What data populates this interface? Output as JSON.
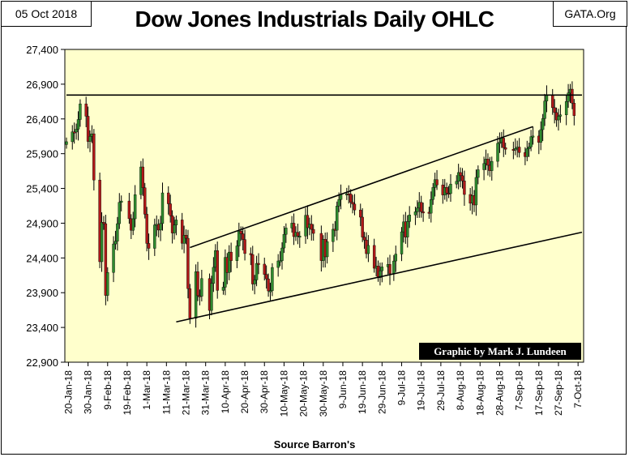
{
  "header": {
    "date": "05 Oct 2018",
    "site": "GATA.Org"
  },
  "chart_data": {
    "type": "ohlc-candlestick",
    "title": "Dow Jones Industrials Daily OHLC",
    "xlabel": "Source Barron's",
    "ylabel": "",
    "ylim": [
      22900,
      27400
    ],
    "yticks": [
      22900,
      23400,
      23900,
      24400,
      24900,
      25400,
      25900,
      26400,
      26900,
      27400
    ],
    "yticklabels": [
      "22,900",
      "23,400",
      "23,900",
      "24,400",
      "24,900",
      "25,400",
      "25,900",
      "26,400",
      "26,900",
      "27,400"
    ],
    "xticklabels": [
      "20-Jan-18",
      "30-Jan-18",
      "9-Feb-18",
      "19-Feb-18",
      "1-Mar-18",
      "11-Mar-18",
      "21-Mar-18",
      "31-Mar-18",
      "10-Apr-18",
      "20-Apr-18",
      "30-Apr-18",
      "10-May-18",
      "20-May-18",
      "30-May-18",
      "9-Jun-18",
      "19-Jun-18",
      "29-Jun-18",
      "9-Jul-18",
      "19-Jul-18",
      "29-Jul-18",
      "8-Aug-18",
      "18-Aug-18",
      "28-Aug-18",
      "7-Sep-18",
      "17-Sep-18",
      "27-Sep-18",
      "7-Oct-18"
    ],
    "grid": false,
    "background": "#ffffcc",
    "annotation": "Graphic by Mark J. Lundeen",
    "series_daily_close": [
      [
        "2018-01-19",
        26072
      ],
      [
        "2018-01-22",
        26214
      ],
      [
        "2018-01-23",
        26211
      ],
      [
        "2018-01-24",
        26252
      ],
      [
        "2018-01-25",
        26392
      ],
      [
        "2018-01-26",
        26617
      ],
      [
        "2018-01-29",
        26439
      ],
      [
        "2018-01-30",
        26076
      ],
      [
        "2018-01-31",
        26149
      ],
      [
        "2018-02-01",
        26186
      ],
      [
        "2018-02-02",
        25521
      ],
      [
        "2018-02-05",
        24346
      ],
      [
        "2018-02-06",
        24913
      ],
      [
        "2018-02-07",
        24893
      ],
      [
        "2018-02-08",
        23861
      ],
      [
        "2018-02-09",
        24191
      ],
      [
        "2018-02-12",
        24601
      ],
      [
        "2018-02-13",
        24641
      ],
      [
        "2018-02-14",
        24893
      ],
      [
        "2018-02-15",
        25200
      ],
      [
        "2018-02-16",
        25219
      ],
      [
        "2018-02-20",
        24965
      ],
      [
        "2018-02-21",
        24798
      ],
      [
        "2018-02-22",
        24963
      ],
      [
        "2018-02-23",
        25310
      ],
      [
        "2018-02-26",
        25709
      ],
      [
        "2018-02-27",
        25410
      ],
      [
        "2018-02-28",
        25029
      ],
      [
        "2018-03-01",
        24609
      ],
      [
        "2018-03-02",
        24538
      ],
      [
        "2018-03-05",
        24875
      ],
      [
        "2018-03-06",
        24884
      ],
      [
        "2018-03-07",
        24801
      ],
      [
        "2018-03-08",
        24895
      ],
      [
        "2018-03-09",
        25336
      ],
      [
        "2018-03-12",
        25179
      ],
      [
        "2018-03-13",
        25007
      ],
      [
        "2018-03-14",
        24759
      ],
      [
        "2018-03-15",
        24874
      ],
      [
        "2018-03-16",
        24947
      ],
      [
        "2018-03-19",
        24611
      ],
      [
        "2018-03-20",
        24727
      ],
      [
        "2018-03-21",
        24683
      ],
      [
        "2018-03-22",
        23958
      ],
      [
        "2018-03-23",
        23533
      ],
      [
        "2018-03-26",
        24202
      ],
      [
        "2018-03-27",
        23857
      ],
      [
        "2018-03-28",
        23849
      ],
      [
        "2018-03-29",
        24103
      ],
      [
        "2018-04-02",
        23645
      ],
      [
        "2018-04-03",
        24034
      ],
      [
        "2018-04-04",
        24265
      ],
      [
        "2018-04-05",
        24505
      ],
      [
        "2018-04-06",
        23933
      ],
      [
        "2018-04-09",
        23979
      ],
      [
        "2018-04-10",
        24408
      ],
      [
        "2018-04-11",
        24190
      ],
      [
        "2018-04-12",
        24484
      ],
      [
        "2018-04-13",
        24360
      ],
      [
        "2018-04-16",
        24573
      ],
      [
        "2018-04-17",
        24787
      ],
      [
        "2018-04-18",
        24748
      ],
      [
        "2018-04-19",
        24665
      ],
      [
        "2018-04-20",
        24463
      ],
      [
        "2018-04-23",
        24449
      ],
      [
        "2018-04-24",
        24025
      ],
      [
        "2018-04-25",
        24084
      ],
      [
        "2018-04-26",
        24322
      ],
      [
        "2018-04-27",
        24311
      ],
      [
        "2018-04-30",
        24163
      ],
      [
        "2018-05-01",
        24099
      ],
      [
        "2018-05-02",
        23925
      ],
      [
        "2018-05-03",
        23930
      ],
      [
        "2018-05-04",
        24263
      ],
      [
        "2018-05-07",
        24357
      ],
      [
        "2018-05-08",
        24361
      ],
      [
        "2018-05-09",
        24543
      ],
      [
        "2018-05-10",
        24740
      ],
      [
        "2018-05-11",
        24831
      ],
      [
        "2018-05-14",
        24900
      ],
      [
        "2018-05-15",
        24707
      ],
      [
        "2018-05-16",
        24769
      ],
      [
        "2018-05-17",
        24714
      ],
      [
        "2018-05-18",
        24715
      ],
      [
        "2018-05-21",
        25013
      ],
      [
        "2018-05-22",
        24835
      ],
      [
        "2018-05-23",
        24887
      ],
      [
        "2018-05-24",
        24811
      ],
      [
        "2018-05-25",
        24753
      ],
      [
        "2018-05-29",
        24362
      ],
      [
        "2018-05-30",
        24668
      ],
      [
        "2018-05-31",
        24416
      ],
      [
        "2018-06-01",
        24635
      ],
      [
        "2018-06-04",
        24813
      ],
      [
        "2018-06-05",
        24799
      ],
      [
        "2018-06-06",
        25146
      ],
      [
        "2018-06-07",
        25241
      ],
      [
        "2018-06-08",
        25317
      ],
      [
        "2018-06-11",
        25322
      ],
      [
        "2018-06-12",
        25320
      ],
      [
        "2018-06-13",
        25201
      ],
      [
        "2018-06-14",
        25175
      ],
      [
        "2018-06-15",
        25090
      ],
      [
        "2018-06-18",
        24987
      ],
      [
        "2018-06-19",
        24700
      ],
      [
        "2018-06-20",
        24657
      ],
      [
        "2018-06-21",
        24462
      ],
      [
        "2018-06-22",
        24580
      ],
      [
        "2018-06-25",
        24252
      ],
      [
        "2018-06-26",
        24283
      ],
      [
        "2018-06-27",
        24117
      ],
      [
        "2018-06-28",
        24216
      ],
      [
        "2018-06-29",
        24271
      ],
      [
        "2018-07-02",
        24307
      ],
      [
        "2018-07-03",
        24174
      ],
      [
        "2018-07-05",
        24356
      ],
      [
        "2018-07-06",
        24456
      ],
      [
        "2018-07-09",
        24776
      ],
      [
        "2018-07-10",
        24919
      ],
      [
        "2018-07-11",
        24700
      ],
      [
        "2018-07-12",
        24924
      ],
      [
        "2018-07-13",
        25019
      ],
      [
        "2018-07-16",
        25064
      ],
      [
        "2018-07-17",
        25119
      ],
      [
        "2018-07-18",
        25199
      ],
      [
        "2018-07-19",
        25064
      ],
      [
        "2018-07-20",
        25058
      ],
      [
        "2018-07-23",
        25044
      ],
      [
        "2018-07-24",
        25241
      ],
      [
        "2018-07-25",
        25414
      ],
      [
        "2018-07-26",
        25527
      ],
      [
        "2018-07-27",
        25451
      ],
      [
        "2018-07-30",
        25306
      ],
      [
        "2018-07-31",
        25415
      ],
      [
        "2018-08-01",
        25333
      ],
      [
        "2018-08-02",
        25326
      ],
      [
        "2018-08-03",
        25463
      ],
      [
        "2018-08-06",
        25502
      ],
      [
        "2018-08-07",
        25629
      ],
      [
        "2018-08-08",
        25583
      ],
      [
        "2018-08-09",
        25509
      ],
      [
        "2018-08-10",
        25313
      ],
      [
        "2018-08-13",
        25187
      ],
      [
        "2018-08-14",
        25299
      ],
      [
        "2018-08-15",
        25162
      ],
      [
        "2018-08-16",
        25558
      ],
      [
        "2018-08-17",
        25669
      ],
      [
        "2018-08-20",
        25758
      ],
      [
        "2018-08-21",
        25822
      ],
      [
        "2018-08-22",
        25733
      ],
      [
        "2018-08-23",
        25656
      ],
      [
        "2018-08-24",
        25790
      ],
      [
        "2018-08-27",
        26049
      ],
      [
        "2018-08-28",
        26064
      ],
      [
        "2018-08-29",
        26124
      ],
      [
        "2018-08-30",
        25986
      ],
      [
        "2018-08-31",
        25964
      ],
      [
        "2018-09-04",
        25952
      ],
      [
        "2018-09-05",
        25974
      ],
      [
        "2018-09-06",
        25995
      ],
      [
        "2018-09-07",
        25916
      ],
      [
        "2018-09-10",
        25857
      ],
      [
        "2018-09-11",
        25971
      ],
      [
        "2018-09-12",
        25998
      ],
      [
        "2018-09-13",
        26145
      ],
      [
        "2018-09-14",
        26154
      ],
      [
        "2018-09-17",
        26062
      ],
      [
        "2018-09-18",
        26246
      ],
      [
        "2018-09-19",
        26405
      ],
      [
        "2018-09-20",
        26657
      ],
      [
        "2018-09-21",
        26743
      ],
      [
        "2018-09-24",
        26562
      ],
      [
        "2018-09-25",
        26492
      ],
      [
        "2018-09-26",
        26385
      ],
      [
        "2018-09-27",
        26439
      ],
      [
        "2018-09-28",
        26458
      ],
      [
        "2018-10-01",
        26651
      ],
      [
        "2018-10-02",
        26773
      ],
      [
        "2018-10-03",
        26828
      ],
      [
        "2018-10-04",
        26627
      ],
      [
        "2018-10-05",
        26447
      ]
    ],
    "reference_lines": [
      {
        "name": "horizontal-resistance",
        "from": [
          "2018-01-19",
          26743
        ],
        "to": [
          "2018-10-09",
          26743
        ]
      },
      {
        "name": "channel-upper",
        "from": [
          "2018-03-23",
          24550
        ],
        "to": [
          "2018-09-14",
          26290
        ]
      },
      {
        "name": "channel-lower",
        "from": [
          "2018-03-16",
          23480
        ],
        "to": [
          "2018-10-09",
          24770
        ]
      }
    ]
  }
}
